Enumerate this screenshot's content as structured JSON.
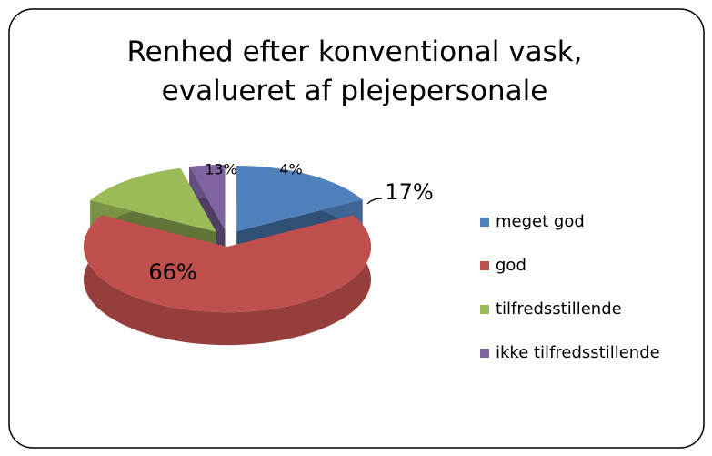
{
  "chart_data": {
    "type": "pie3d",
    "title": "Renhed efter konventional vask, evalueret af plejepersonale",
    "categories": [
      "meget god",
      "god",
      "tilfredsstillende",
      "ikke tilfredsstillende"
    ],
    "values": [
      17,
      66,
      13,
      4
    ],
    "value_labels": [
      "17%",
      "66%",
      "13%",
      "4%"
    ],
    "colors": [
      "#4f81bd",
      "#c0504d",
      "#9bbb59",
      "#8064a2"
    ],
    "legend": "right"
  }
}
